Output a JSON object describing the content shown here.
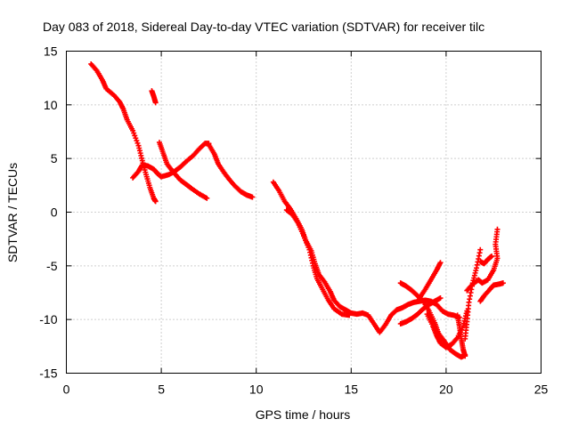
{
  "chart_data": {
    "type": "scatter",
    "title": "Day 083 of 2018, Sidereal Day-to-day VTEC variation (SDTVAR) for receiver tilc",
    "xlabel": "GPS time / hours",
    "ylabel": "SDTVAR / TECUs",
    "xlim": [
      0,
      25
    ],
    "ylim": [
      -15,
      15
    ],
    "xticks": [
      "0",
      "5",
      "10",
      "15",
      "20",
      "25"
    ],
    "yticks": [
      "15",
      "10",
      "5",
      "0",
      "-5",
      "-10",
      "-15"
    ],
    "grid": true,
    "marker": "plus",
    "color": "#ff0000",
    "series": [
      {
        "points": [
          [
            1.3,
            13.8
          ],
          [
            1.6,
            13.2
          ],
          [
            1.9,
            12.3
          ],
          [
            2.1,
            11.5
          ],
          [
            2.5,
            10.9
          ],
          [
            2.8,
            10.3
          ],
          [
            3.0,
            9.6
          ],
          [
            3.2,
            8.6
          ],
          [
            3.5,
            7.6
          ],
          [
            3.8,
            6.2
          ],
          [
            4.0,
            4.8
          ],
          [
            4.2,
            3.5
          ],
          [
            4.4,
            2.3
          ],
          [
            4.6,
            1.3
          ],
          [
            4.7,
            1.0
          ]
        ]
      },
      {
        "points": [
          [
            4.5,
            11.3
          ],
          [
            4.6,
            10.8
          ],
          [
            4.7,
            10.2
          ]
        ]
      },
      {
        "points": [
          [
            3.5,
            3.2
          ],
          [
            3.8,
            3.8
          ],
          [
            4.0,
            4.4
          ],
          [
            4.3,
            4.3
          ],
          [
            4.6,
            4.0
          ],
          [
            4.8,
            3.6
          ],
          [
            5.0,
            3.3
          ],
          [
            5.4,
            3.5
          ],
          [
            5.7,
            3.8
          ],
          [
            6.0,
            4.2
          ],
          [
            6.3,
            4.7
          ],
          [
            6.7,
            5.3
          ],
          [
            7.0,
            5.9
          ],
          [
            7.3,
            6.4
          ],
          [
            7.5,
            6.4
          ]
        ]
      },
      {
        "points": [
          [
            4.9,
            6.5
          ],
          [
            5.1,
            5.5
          ],
          [
            5.3,
            4.5
          ],
          [
            5.6,
            3.8
          ],
          [
            6.0,
            3.0
          ],
          [
            6.3,
            2.6
          ],
          [
            6.6,
            2.2
          ],
          [
            7.0,
            1.7
          ],
          [
            7.4,
            1.3
          ]
        ]
      },
      {
        "points": [
          [
            7.5,
            6.3
          ],
          [
            7.8,
            5.4
          ],
          [
            8.0,
            4.5
          ],
          [
            8.3,
            3.7
          ],
          [
            8.6,
            3.0
          ],
          [
            8.9,
            2.4
          ],
          [
            9.2,
            1.9
          ],
          [
            9.5,
            1.6
          ],
          [
            9.8,
            1.4
          ]
        ]
      },
      {
        "points": [
          [
            10.9,
            2.8
          ],
          [
            11.2,
            2.0
          ],
          [
            11.5,
            1.0
          ],
          [
            11.8,
            0.3
          ],
          [
            12.1,
            -0.6
          ],
          [
            12.4,
            -1.6
          ],
          [
            12.6,
            -2.6
          ],
          [
            12.9,
            -3.6
          ],
          [
            13.1,
            -4.8
          ],
          [
            13.3,
            -5.8
          ],
          [
            13.6,
            -6.5
          ],
          [
            13.9,
            -7.4
          ],
          [
            14.1,
            -8.2
          ],
          [
            14.4,
            -8.8
          ],
          [
            14.7,
            -9.1
          ],
          [
            15.0,
            -9.4
          ],
          [
            15.3,
            -9.5
          ],
          [
            15.6,
            -9.4
          ],
          [
            15.9,
            -9.6
          ],
          [
            16.2,
            -10.4
          ],
          [
            16.5,
            -11.2
          ],
          [
            16.8,
            -10.5
          ],
          [
            17.1,
            -9.6
          ],
          [
            17.4,
            -9.1
          ],
          [
            17.7,
            -8.9
          ],
          [
            18.0,
            -8.6
          ],
          [
            18.3,
            -8.4
          ],
          [
            18.6,
            -8.3
          ],
          [
            18.9,
            -8.2
          ],
          [
            19.2,
            -8.3
          ],
          [
            19.5,
            -8.6
          ],
          [
            19.8,
            -9.2
          ],
          [
            20.1,
            -9.5
          ],
          [
            20.4,
            -9.6
          ],
          [
            20.7,
            -9.8
          ]
        ]
      },
      {
        "points": [
          [
            11.6,
            0.2
          ],
          [
            11.9,
            -0.2
          ],
          [
            12.2,
            -1.0
          ],
          [
            12.5,
            -2.2
          ],
          [
            12.8,
            -3.5
          ],
          [
            13.0,
            -5.0
          ],
          [
            13.2,
            -6.2
          ],
          [
            13.5,
            -7.2
          ],
          [
            13.8,
            -8.2
          ],
          [
            14.1,
            -9.0
          ],
          [
            14.5,
            -9.5
          ],
          [
            14.9,
            -9.6
          ]
        ]
      },
      {
        "points": [
          [
            17.6,
            -10.4
          ],
          [
            17.9,
            -10.2
          ],
          [
            18.2,
            -9.9
          ],
          [
            18.5,
            -9.5
          ],
          [
            18.8,
            -9.0
          ],
          [
            19.1,
            -8.6
          ],
          [
            19.4,
            -8.3
          ],
          [
            19.7,
            -8.0
          ]
        ]
      },
      {
        "points": [
          [
            17.6,
            -6.6
          ],
          [
            17.9,
            -6.9
          ],
          [
            18.2,
            -7.3
          ],
          [
            18.5,
            -7.8
          ],
          [
            18.8,
            -8.3
          ],
          [
            19.1,
            -9.2
          ],
          [
            19.4,
            -10.3
          ],
          [
            19.6,
            -11.3
          ],
          [
            19.9,
            -12.0
          ],
          [
            20.2,
            -12.8
          ],
          [
            20.5,
            -13.2
          ],
          [
            20.8,
            -13.5
          ],
          [
            21.0,
            -13.3
          ]
        ]
      },
      {
        "points": [
          [
            18.6,
            -8.0
          ],
          [
            18.9,
            -7.2
          ],
          [
            19.2,
            -6.3
          ],
          [
            19.5,
            -5.4
          ],
          [
            19.7,
            -4.7
          ]
        ]
      },
      {
        "points": [
          [
            19.0,
            -9.5
          ],
          [
            19.3,
            -10.6
          ],
          [
            19.5,
            -11.5
          ],
          [
            19.7,
            -12.2
          ],
          [
            20.0,
            -12.6
          ],
          [
            20.3,
            -12.3
          ],
          [
            20.6,
            -11.7
          ],
          [
            20.9,
            -10.6
          ],
          [
            21.1,
            -9.2
          ]
        ]
      },
      {
        "points": [
          [
            21.0,
            -11.8
          ],
          [
            21.1,
            -10.2
          ],
          [
            21.2,
            -8.4
          ],
          [
            21.4,
            -6.6
          ],
          [
            21.6,
            -5.2
          ],
          [
            21.8,
            -3.5
          ]
        ]
      },
      {
        "points": [
          [
            21.1,
            -7.3
          ],
          [
            21.4,
            -6.7
          ],
          [
            21.7,
            -6.3
          ],
          [
            21.9,
            -6.6
          ],
          [
            22.2,
            -6.3
          ],
          [
            22.5,
            -5.4
          ],
          [
            22.7,
            -4.3
          ],
          [
            22.6,
            -3.0
          ],
          [
            22.7,
            -1.6
          ]
        ]
      },
      {
        "points": [
          [
            21.8,
            -4.6
          ],
          [
            22.0,
            -4.8
          ],
          [
            22.2,
            -4.4
          ],
          [
            22.4,
            -4.1
          ]
        ]
      },
      {
        "points": [
          [
            21.8,
            -8.3
          ],
          [
            22.0,
            -7.8
          ],
          [
            22.3,
            -7.2
          ],
          [
            22.5,
            -6.8
          ],
          [
            22.8,
            -6.7
          ],
          [
            23.0,
            -6.6
          ]
        ]
      },
      {
        "points": [
          [
            20.6,
            -9.6
          ],
          [
            20.7,
            -10.6
          ],
          [
            20.8,
            -11.8
          ],
          [
            20.9,
            -12.8
          ],
          [
            21.0,
            -13.4
          ]
        ]
      }
    ]
  }
}
